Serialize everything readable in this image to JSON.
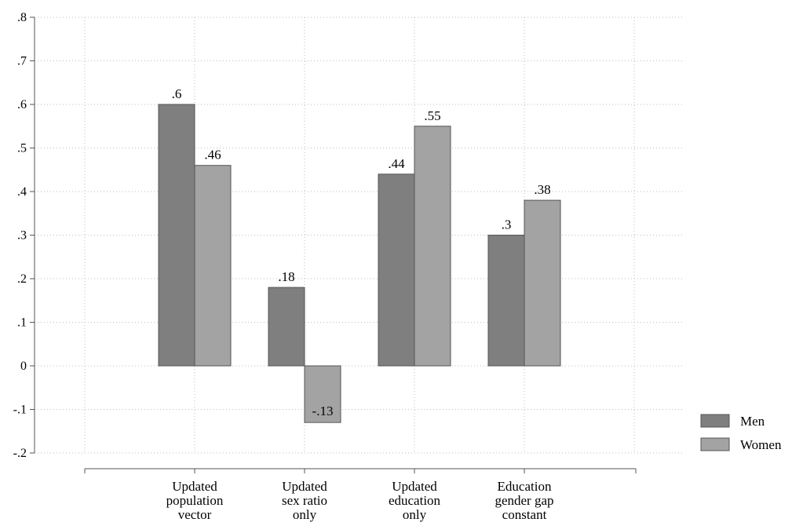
{
  "chart_data": {
    "type": "bar",
    "categories": [
      [
        "Updated",
        "population",
        "vector"
      ],
      [
        "Updated",
        "sex ratio",
        "only"
      ],
      [
        "Updated",
        "education",
        "only"
      ],
      [
        "Education",
        "gender gap",
        "constant"
      ]
    ],
    "series": [
      {
        "name": "Men",
        "values": [
          0.6,
          0.18,
          0.44,
          0.3
        ],
        "labels": [
          ".6",
          ".18",
          ".44",
          ".3"
        ],
        "color": "#7f7f7f"
      },
      {
        "name": "Women",
        "values": [
          0.46,
          -0.13,
          0.55,
          0.38
        ],
        "labels": [
          ".46",
          "-.13",
          ".55",
          ".38"
        ],
        "color": "#a3a3a3"
      }
    ],
    "ylim": [
      -0.2,
      0.8
    ],
    "yticks": [
      -0.2,
      -0.1,
      0,
      0.1,
      0.2,
      0.3,
      0.4,
      0.5,
      0.6,
      0.7,
      0.8
    ],
    "ytick_labels": [
      "-.2",
      "-.1",
      "0",
      ".1",
      ".2",
      ".3",
      ".4",
      ".5",
      ".6",
      ".7",
      ".8"
    ],
    "grid": true,
    "legend_position": "right"
  }
}
